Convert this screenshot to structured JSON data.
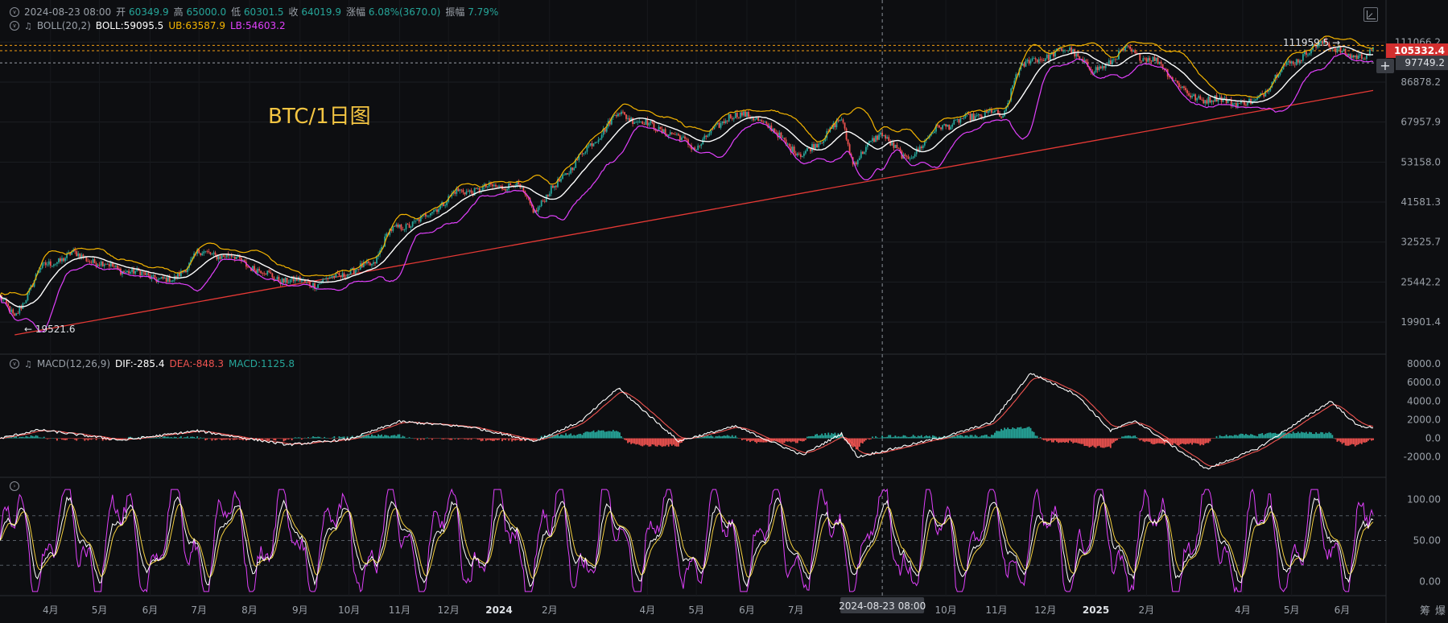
{
  "header": {
    "ohlc": {
      "date": "2024-08-23 08:00",
      "open_label": "开",
      "open": "60349.9",
      "high_label": "高",
      "high": "65000.0",
      "low_label": "低",
      "low": "60301.5",
      "close_label": "收",
      "close": "64019.9",
      "change_label": "涨幅",
      "change": "6.08%(3670.0)",
      "amplitude_label": "振幅",
      "amplitude": "7.79%"
    },
    "boll": {
      "name": "BOLL(20,2)",
      "mid": "BOLL:59095.5",
      "ub": "UB:63587.9",
      "lb": "LB:54603.2"
    },
    "macd": {
      "name": "MACD(12,26,9)",
      "dif": "DIF:-285.4",
      "dea": "DEA:-848.3",
      "macd": "MACD:1125.8"
    }
  },
  "annotation": "BTC/1日图",
  "price_axis": [
    "111066.2",
    "86878.2",
    "67957.9",
    "53158.0",
    "41581.3",
    "32525.7",
    "25442.2",
    "19901.4"
  ],
  "price_tags": {
    "current": "105332.4",
    "crosshair": "97749.2"
  },
  "price_markers": {
    "high": "111959.5",
    "low": "19521.6"
  },
  "macd_axis": [
    "8000.0",
    "6000.0",
    "4000.0",
    "2000.0",
    "0.0",
    "-2000.0"
  ],
  "kdj_axis": [
    "100.00",
    "50.00",
    "0.00"
  ],
  "time_axis": [
    "4月",
    "5月",
    "6月",
    "7月",
    "8月",
    "9月",
    "10月",
    "11月",
    "12月",
    "2024",
    "2月",
    "4月",
    "5月",
    "6月",
    "7月",
    "10月",
    "11月",
    "12月",
    "2025",
    "2月",
    "4月",
    "5月",
    "6月"
  ],
  "crosshair_time": "2024-08-23 08:00",
  "footer_icons": [
    "筹",
    "爆"
  ],
  "colors": {
    "up": "#26a69a",
    "down": "#ef5350",
    "boll_mid": "#ffffff",
    "boll_ub": "#f4b400",
    "boll_lb": "#e040fb",
    "trendline": "#e53935",
    "k": "#ffffff",
    "d": "#f4d03f",
    "j": "#e040fb"
  },
  "chart_data": {
    "type": "candlestick",
    "title": "BTC/1日图",
    "scale": "log",
    "ylim": [
      17000,
      118000
    ],
    "x_range": [
      "2023-03-01",
      "2025-06-20"
    ],
    "price_path": [
      [
        "2023-03-01",
        23500
      ],
      [
        "2023-03-10",
        20200
      ],
      [
        "2023-03-25",
        27500
      ],
      [
        "2023-04-14",
        30300
      ],
      [
        "2023-05-10",
        27800
      ],
      [
        "2023-06-15",
        25500
      ],
      [
        "2023-06-30",
        30400
      ],
      [
        "2023-07-20",
        29900
      ],
      [
        "2023-08-17",
        26000
      ],
      [
        "2023-09-11",
        25200
      ],
      [
        "2023-10-16",
        28500
      ],
      [
        "2023-10-25",
        34500
      ],
      [
        "2023-11-15",
        37500
      ],
      [
        "2023-12-05",
        44000
      ],
      [
        "2024-01-11",
        46500
      ],
      [
        "2024-01-23",
        39500
      ],
      [
        "2024-02-15",
        52000
      ],
      [
        "2024-03-14",
        72000
      ],
      [
        "2024-04-15",
        63500
      ],
      [
        "2024-05-01",
        58000
      ],
      [
        "2024-05-21",
        71000
      ],
      [
        "2024-06-07",
        70000
      ],
      [
        "2024-07-05",
        55000
      ],
      [
        "2024-07-29",
        69000
      ],
      [
        "2024-08-05",
        53000
      ],
      [
        "2024-08-23",
        64000
      ],
      [
        "2024-09-06",
        53500
      ],
      [
        "2024-09-27",
        66000
      ],
      [
        "2024-10-29",
        72500
      ],
      [
        "2024-11-05",
        69000
      ],
      [
        "2024-11-13",
        92000
      ],
      [
        "2024-11-22",
        99000
      ],
      [
        "2024-12-17",
        106500
      ],
      [
        "2024-12-30",
        92000
      ],
      [
        "2025-01-20",
        106000
      ],
      [
        "2025-02-10",
        97000
      ],
      [
        "2025-02-28",
        79000
      ],
      [
        "2025-03-10",
        78500
      ],
      [
        "2025-04-08",
        76000
      ],
      [
        "2025-04-25",
        94500
      ],
      [
        "2025-05-22",
        111900
      ],
      [
        "2025-06-05",
        101000
      ],
      [
        "2025-06-20",
        104500
      ]
    ],
    "trendline": [
      [
        "2023-03-10",
        18400
      ],
      [
        "2025-06-20",
        82500
      ]
    ],
    "macd_path": [
      [
        "2023-03-01",
        0
      ],
      [
        "2023-03-25",
        900
      ],
      [
        "2023-05-15",
        -200
      ],
      [
        "2023-06-30",
        800
      ],
      [
        "2023-08-25",
        -700
      ],
      [
        "2023-10-01",
        -100
      ],
      [
        "2023-11-01",
        1800
      ],
      [
        "2023-12-15",
        1200
      ],
      [
        "2024-01-23",
        -300
      ],
      [
        "2024-02-20",
        1800
      ],
      [
        "2024-03-14",
        5400
      ],
      [
        "2024-04-20",
        -300
      ],
      [
        "2024-05-25",
        1300
      ],
      [
        "2024-07-05",
        -1800
      ],
      [
        "2024-07-29",
        500
      ],
      [
        "2024-08-08",
        -2000
      ],
      [
        "2024-10-01",
        200
      ],
      [
        "2024-10-29",
        1700
      ],
      [
        "2024-11-22",
        7000
      ],
      [
        "2024-12-20",
        4700
      ],
      [
        "2025-01-10",
        800
      ],
      [
        "2025-01-25",
        1900
      ],
      [
        "2025-03-10",
        -3300
      ],
      [
        "2025-04-10",
        -1100
      ],
      [
        "2025-05-25",
        4000
      ],
      [
        "2025-06-10",
        1400
      ],
      [
        "2025-06-20",
        1100
      ]
    ]
  }
}
